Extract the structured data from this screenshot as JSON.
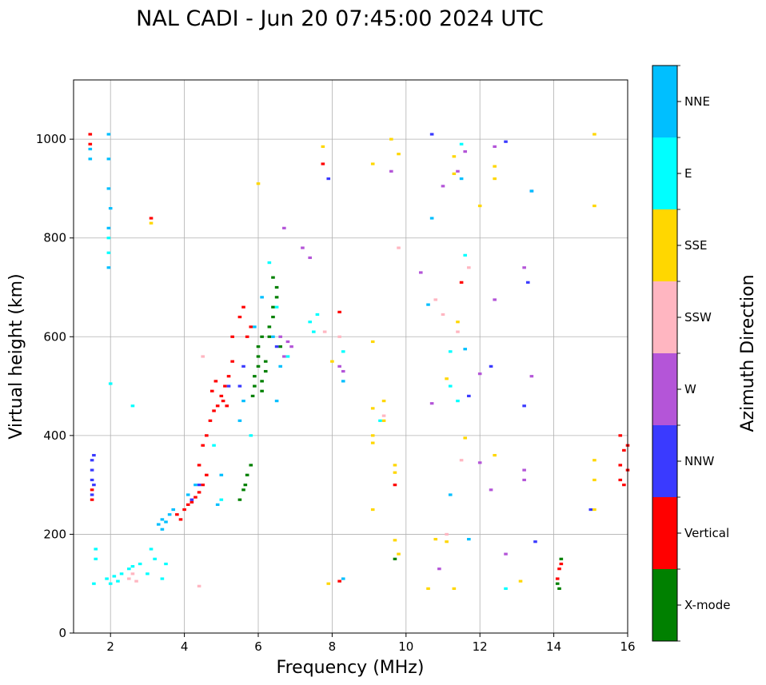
{
  "chart_data": {
    "type": "scatter",
    "title": "NAL CADI - Jun 20 07:45:00 2024 UTC",
    "xlabel": "Frequency (MHz)",
    "ylabel": "Virtual height (km)",
    "xlim": [
      1,
      16
    ],
    "ylim": [
      0,
      1120
    ],
    "xticks": [
      2,
      4,
      6,
      8,
      10,
      12,
      14,
      16
    ],
    "yticks": [
      0,
      200,
      400,
      600,
      800,
      1000
    ],
    "grid": true,
    "colorbar": {
      "label": "Azimuth Direction",
      "categories": [
        {
          "name": "X-mode",
          "color": "#008000"
        },
        {
          "name": "Vertical",
          "color": "#ff0000"
        },
        {
          "name": "NNW",
          "color": "#3a3aff"
        },
        {
          "name": "W",
          "color": "#b455d8"
        },
        {
          "name": "SSW",
          "color": "#ffb6c1"
        },
        {
          "name": "SSE",
          "color": "#ffd700"
        },
        {
          "name": "E",
          "color": "#00ffff"
        },
        {
          "name": "NNE",
          "color": "#00bfff"
        }
      ]
    },
    "series": [
      {
        "name": "X-mode",
        "points": [
          [
            5.5,
            270
          ],
          [
            5.6,
            290
          ],
          [
            5.65,
            300
          ],
          [
            5.7,
            320
          ],
          [
            5.8,
            340
          ],
          [
            5.9,
            500
          ],
          [
            5.9,
            520
          ],
          [
            6.0,
            540
          ],
          [
            6.0,
            560
          ],
          [
            6.1,
            490
          ],
          [
            6.1,
            510
          ],
          [
            6.2,
            530
          ],
          [
            6.2,
            550
          ],
          [
            6.3,
            600
          ],
          [
            6.3,
            620
          ],
          [
            6.4,
            640
          ],
          [
            6.4,
            660
          ],
          [
            6.4,
            720
          ],
          [
            6.5,
            700
          ],
          [
            6.0,
            580
          ],
          [
            6.1,
            600
          ],
          [
            5.85,
            480
          ],
          [
            14.1,
            100
          ],
          [
            14.15,
            90
          ],
          [
            14.2,
            150
          ],
          [
            9.7,
            150
          ],
          [
            6.6,
            580
          ],
          [
            6.5,
            680
          ]
        ]
      },
      {
        "name": "Vertical",
        "points": [
          [
            1.45,
            1010
          ],
          [
            1.45,
            990
          ],
          [
            1.5,
            290
          ],
          [
            1.5,
            270
          ],
          [
            3.1,
            840
          ],
          [
            3.8,
            240
          ],
          [
            3.9,
            230
          ],
          [
            4.0,
            250
          ],
          [
            4.1,
            260
          ],
          [
            4.2,
            265
          ],
          [
            4.3,
            275
          ],
          [
            4.4,
            285
          ],
          [
            4.5,
            300
          ],
          [
            4.6,
            320
          ],
          [
            4.4,
            340
          ],
          [
            4.5,
            380
          ],
          [
            4.6,
            400
          ],
          [
            4.7,
            430
          ],
          [
            4.8,
            450
          ],
          [
            4.9,
            460
          ],
          [
            5.0,
            480
          ],
          [
            5.1,
            500
          ],
          [
            5.2,
            520
          ],
          [
            5.3,
            550
          ],
          [
            4.75,
            490
          ],
          [
            4.85,
            510
          ],
          [
            5.05,
            470
          ],
          [
            5.15,
            460
          ],
          [
            5.3,
            600
          ],
          [
            5.5,
            640
          ],
          [
            5.6,
            660
          ],
          [
            5.7,
            600
          ],
          [
            5.8,
            620
          ],
          [
            14.15,
            130
          ],
          [
            14.1,
            110
          ],
          [
            14.2,
            140
          ],
          [
            15.8,
            310
          ],
          [
            15.8,
            340
          ],
          [
            15.9,
            370
          ],
          [
            15.8,
            400
          ],
          [
            15.9,
            300
          ],
          [
            16.0,
            330
          ],
          [
            16.0,
            380
          ],
          [
            11.5,
            710
          ],
          [
            8.2,
            650
          ],
          [
            8.2,
            105
          ],
          [
            9.7,
            300
          ],
          [
            7.75,
            950
          ]
        ]
      },
      {
        "name": "NNW",
        "points": [
          [
            1.5,
            350
          ],
          [
            1.5,
            330
          ],
          [
            1.5,
            310
          ],
          [
            1.55,
            300
          ],
          [
            1.5,
            280
          ],
          [
            1.55,
            360
          ],
          [
            5.5,
            500
          ],
          [
            5.6,
            540
          ],
          [
            4.2,
            270
          ],
          [
            4.4,
            300
          ],
          [
            10.7,
            1010
          ],
          [
            12.7,
            995
          ],
          [
            13.4,
            895
          ],
          [
            13.3,
            710
          ],
          [
            12.3,
            540
          ],
          [
            11.7,
            480
          ],
          [
            13.2,
            460
          ],
          [
            13.5,
            185
          ],
          [
            15.0,
            250
          ],
          [
            7.9,
            920
          ],
          [
            6.5,
            580
          ],
          [
            5.2,
            500
          ]
        ]
      },
      {
        "name": "W",
        "points": [
          [
            6.7,
            820
          ],
          [
            7.2,
            780
          ],
          [
            7.4,
            760
          ],
          [
            6.6,
            600
          ],
          [
            6.8,
            590
          ],
          [
            6.7,
            560
          ],
          [
            6.9,
            580
          ],
          [
            8.2,
            540
          ],
          [
            8.3,
            530
          ],
          [
            11.4,
            935
          ],
          [
            12.4,
            985
          ],
          [
            13.4,
            520
          ],
          [
            12.4,
            675
          ],
          [
            10.4,
            730
          ],
          [
            11.6,
            975
          ],
          [
            12.0,
            525
          ],
          [
            13.2,
            740
          ],
          [
            11.0,
            905
          ],
          [
            10.7,
            465
          ],
          [
            12.0,
            345
          ],
          [
            12.3,
            290
          ],
          [
            12.7,
            160
          ],
          [
            10.9,
            130
          ],
          [
            13.2,
            330
          ],
          [
            13.2,
            310
          ],
          [
            9.6,
            935
          ]
        ]
      },
      {
        "name": "SSW",
        "points": [
          [
            2.5,
            110
          ],
          [
            2.6,
            120
          ],
          [
            2.7,
            105
          ],
          [
            4.4,
            95
          ],
          [
            4.5,
            560
          ],
          [
            8.2,
            600
          ],
          [
            11.4,
            610
          ],
          [
            11.0,
            645
          ],
          [
            10.8,
            675
          ],
          [
            11.7,
            740
          ],
          [
            11.5,
            350
          ],
          [
            9.4,
            440
          ],
          [
            9.8,
            780
          ],
          [
            11.1,
            200
          ],
          [
            7.8,
            610
          ]
        ]
      },
      {
        "name": "SSE",
        "points": [
          [
            3.1,
            830
          ],
          [
            6.0,
            910
          ],
          [
            9.1,
            950
          ],
          [
            9.1,
            590
          ],
          [
            9.1,
            455
          ],
          [
            9.1,
            400
          ],
          [
            9.1,
            385
          ],
          [
            9.1,
            250
          ],
          [
            9.4,
            470
          ],
          [
            9.4,
            430
          ],
          [
            9.7,
            340
          ],
          [
            9.7,
            325
          ],
          [
            9.8,
            160
          ],
          [
            8.0,
            550
          ],
          [
            11.3,
            965
          ],
          [
            12.4,
            945
          ],
          [
            12.4,
            920
          ],
          [
            12.0,
            865
          ],
          [
            11.3,
            930
          ],
          [
            11.4,
            630
          ],
          [
            11.1,
            515
          ],
          [
            11.6,
            395
          ],
          [
            12.4,
            360
          ],
          [
            15.1,
            1010
          ],
          [
            15.1,
            865
          ],
          [
            15.1,
            350
          ],
          [
            15.1,
            310
          ],
          [
            15.1,
            250
          ],
          [
            7.75,
            985
          ],
          [
            7.9,
            100
          ],
          [
            10.6,
            90
          ],
          [
            10.8,
            190
          ],
          [
            11.3,
            90
          ],
          [
            11.1,
            185
          ],
          [
            13.1,
            105
          ],
          [
            9.6,
            1000
          ],
          [
            9.8,
            970
          ],
          [
            9.7,
            188
          ]
        ]
      },
      {
        "name": "E",
        "points": [
          [
            1.6,
            150
          ],
          [
            1.6,
            170
          ],
          [
            1.55,
            100
          ],
          [
            1.9,
            110
          ],
          [
            2.0,
            100
          ],
          [
            2.1,
            115
          ],
          [
            2.2,
            105
          ],
          [
            2.3,
            120
          ],
          [
            2.5,
            130
          ],
          [
            2.6,
            135
          ],
          [
            2.8,
            140
          ],
          [
            3.0,
            120
          ],
          [
            3.1,
            170
          ],
          [
            3.2,
            150
          ],
          [
            3.4,
            110
          ],
          [
            3.5,
            140
          ],
          [
            2.6,
            460
          ],
          [
            2.0,
            505
          ],
          [
            1.95,
            800
          ],
          [
            1.95,
            770
          ],
          [
            5.8,
            400
          ],
          [
            6.3,
            750
          ],
          [
            6.5,
            660
          ],
          [
            6.8,
            560
          ],
          [
            7.4,
            630
          ],
          [
            7.5,
            610
          ],
          [
            5.0,
            270
          ],
          [
            4.8,
            380
          ],
          [
            11.2,
            570
          ],
          [
            11.6,
            765
          ],
          [
            11.5,
            990
          ],
          [
            11.2,
            500
          ],
          [
            12.7,
            90
          ],
          [
            11.4,
            470
          ],
          [
            9.3,
            430
          ],
          [
            8.3,
            570
          ],
          [
            7.6,
            645
          ]
        ]
      },
      {
        "name": "NNE",
        "points": [
          [
            1.45,
            980
          ],
          [
            1.45,
            960
          ],
          [
            1.95,
            1010
          ],
          [
            1.95,
            960
          ],
          [
            1.95,
            900
          ],
          [
            2.0,
            860
          ],
          [
            1.95,
            820
          ],
          [
            1.95,
            740
          ],
          [
            3.3,
            220
          ],
          [
            3.4,
            230
          ],
          [
            3.5,
            225
          ],
          [
            3.6,
            240
          ],
          [
            3.7,
            250
          ],
          [
            3.4,
            210
          ],
          [
            4.1,
            280
          ],
          [
            4.3,
            300
          ],
          [
            4.9,
            260
          ],
          [
            5.0,
            320
          ],
          [
            5.5,
            430
          ],
          [
            5.6,
            470
          ],
          [
            5.9,
            620
          ],
          [
            6.1,
            680
          ],
          [
            6.4,
            600
          ],
          [
            6.6,
            540
          ],
          [
            6.5,
            470
          ],
          [
            10.7,
            840
          ],
          [
            10.6,
            665
          ],
          [
            11.5,
            920
          ],
          [
            11.7,
            190
          ],
          [
            11.2,
            280
          ],
          [
            11.6,
            575
          ],
          [
            8.3,
            510
          ],
          [
            8.3,
            110
          ],
          [
            13.4,
            895
          ]
        ]
      }
    ]
  }
}
